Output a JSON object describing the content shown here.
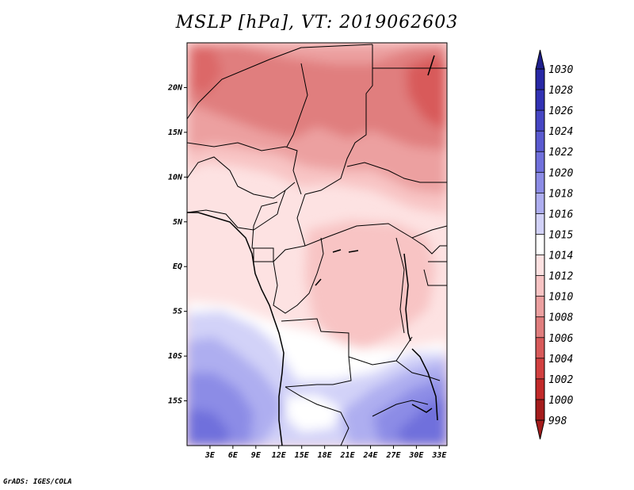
{
  "title": "MSLP [hPa], VT: 2019062603",
  "footer": "GrADS: IGES/COLA",
  "map": {
    "type": "filled-contour-map",
    "variable": "MSLP",
    "unit": "hPa",
    "valid_time": "2019062603",
    "lon_range": [
      0,
      34
    ],
    "lat_range": [
      -20,
      25
    ],
    "lat_labels": [
      {
        "lat": 20,
        "label": "20N"
      },
      {
        "lat": 15,
        "label": "15N"
      },
      {
        "lat": 10,
        "label": "10N"
      },
      {
        "lat": 5,
        "label": "5N"
      },
      {
        "lat": 0,
        "label": "EQ"
      },
      {
        "lat": -5,
        "label": "5S"
      },
      {
        "lat": -10,
        "label": "10S"
      },
      {
        "lat": -15,
        "label": "15S"
      }
    ],
    "lon_labels": [
      {
        "lon": 3,
        "label": "3E"
      },
      {
        "lon": 6,
        "label": "6E"
      },
      {
        "lon": 9,
        "label": "9E"
      },
      {
        "lon": 12,
        "label": "12E"
      },
      {
        "lon": 15,
        "label": "15E"
      },
      {
        "lon": 18,
        "label": "18E"
      },
      {
        "lon": 21,
        "label": "21E"
      },
      {
        "lon": 24,
        "label": "24E"
      },
      {
        "lon": 27,
        "label": "27E"
      },
      {
        "lon": 30,
        "label": "30E"
      },
      {
        "lon": 33,
        "label": "33E"
      }
    ]
  },
  "colorbar": {
    "levels": [
      {
        "label": "1030",
        "color": "#1f1f8c"
      },
      {
        "label": "1028",
        "color": "#2828a6"
      },
      {
        "label": "1026",
        "color": "#3232b4"
      },
      {
        "label": "1024",
        "color": "#4646c4"
      },
      {
        "label": "1022",
        "color": "#5a5ad0"
      },
      {
        "label": "1020",
        "color": "#7070dc"
      },
      {
        "label": "1018",
        "color": "#8c8ce6"
      },
      {
        "label": "1016",
        "color": "#aeaef0"
      },
      {
        "label": "1015",
        "color": "#d2d2f8"
      },
      {
        "label": "1014",
        "color": "#ffffff"
      },
      {
        "label": "1012",
        "color": "#fde2e2"
      },
      {
        "label": "1010",
        "color": "#f8c4c4"
      },
      {
        "label": "1008",
        "color": "#eca0a0"
      },
      {
        "label": "1006",
        "color": "#e07e7e"
      },
      {
        "label": "1004",
        "color": "#d85a5a"
      },
      {
        "label": "1002",
        "color": "#d24040"
      },
      {
        "label": "1000",
        "color": "#c22a2a"
      },
      {
        "label": "998",
        "color": "#a41c1c"
      }
    ]
  }
}
